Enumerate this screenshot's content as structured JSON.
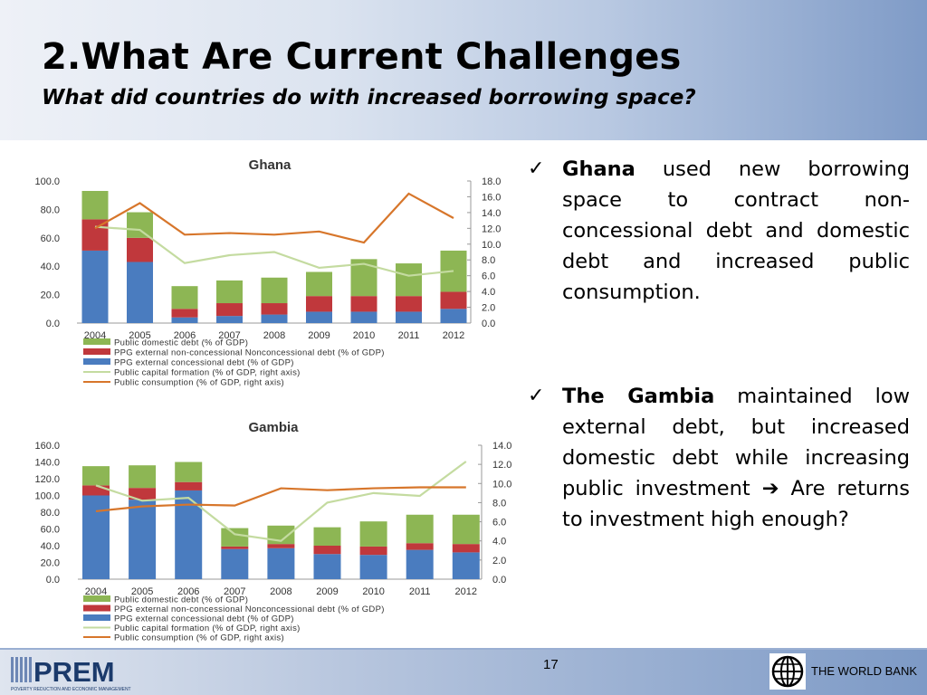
{
  "header": {
    "title": "2.What Are Current Challenges",
    "subtitle": "What did countries do with increased borrowing space?"
  },
  "colors": {
    "domestic": "#8db654",
    "nonconcessional": "#c0383c",
    "concessional": "#4a7cbf",
    "capital_formation": "#c4dba0",
    "consumption": "#d7762b"
  },
  "chart_data": [
    {
      "type": "bar",
      "title": "Ghana",
      "stacked": true,
      "categories": [
        "2004",
        "2005",
        "2006",
        "2007",
        "2008",
        "2009",
        "2010",
        "2011",
        "2012"
      ],
      "left_axis": {
        "ylim": [
          0,
          100
        ],
        "ticks": [
          "0.0",
          "20.0",
          "40.0",
          "60.0",
          "80.0",
          "100.0"
        ]
      },
      "right_axis": {
        "ylim": [
          0,
          18
        ],
        "ticks": [
          "0.0",
          "2.0",
          "4.0",
          "6.0",
          "8.0",
          "10.0",
          "12.0",
          "14.0",
          "16.0",
          "18.0"
        ]
      },
      "series": [
        {
          "name": "PPG external concessional debt (% of GDP)",
          "axis": "left",
          "kind": "bar",
          "values": [
            51,
            43,
            4,
            5,
            6,
            8,
            8,
            8,
            10
          ]
        },
        {
          "name": "PPG external non-concessional Nonconcessional debt (% of GDP)",
          "axis": "left",
          "kind": "bar",
          "values": [
            22,
            17,
            6,
            9,
            8,
            11,
            11,
            11,
            12
          ]
        },
        {
          "name": "Public domestic debt (% of GDP)",
          "axis": "left",
          "kind": "bar",
          "values": [
            20,
            18,
            16,
            16,
            18,
            17,
            26,
            23,
            29
          ]
        },
        {
          "name": "Public capital formation (% of GDP, right axis)",
          "axis": "right",
          "kind": "line",
          "values": [
            12.2,
            11.8,
            7.6,
            8.6,
            9.0,
            7.0,
            7.5,
            6.0,
            6.6
          ]
        },
        {
          "name": "Public consumption (% of GDP, right axis)",
          "axis": "right",
          "kind": "line",
          "values": [
            12.0,
            15.2,
            11.2,
            11.4,
            11.2,
            11.6,
            10.2,
            16.4,
            13.3
          ]
        }
      ],
      "legend": [
        "Public domestic debt (% of GDP)",
        "PPG external non-concessional Nonconcessional debt (% of GDP)",
        "PPG external concessional debt (% of GDP)",
        "Public capital formation (% of GDP, right axis)",
        "Public consumption (% of GDP, right axis)"
      ]
    },
    {
      "type": "bar",
      "title": "Gambia",
      "stacked": true,
      "categories": [
        "2004",
        "2005",
        "2006",
        "2007",
        "2008",
        "2009",
        "2010",
        "2011",
        "2012"
      ],
      "left_axis": {
        "ylim": [
          0,
          160
        ],
        "ticks": [
          "0.0",
          "20.0",
          "40.0",
          "60.0",
          "80.0",
          "100.0",
          "120.0",
          "140.0",
          "160.0"
        ]
      },
      "right_axis": {
        "ylim": [
          0,
          14
        ],
        "ticks": [
          "0.0",
          "2.0",
          "4.0",
          "6.0",
          "8.0",
          "10.0",
          "12.0",
          "14.0"
        ]
      },
      "series": [
        {
          "name": "PPG external concessional debt (% of GDP)",
          "axis": "left",
          "kind": "bar",
          "values": [
            100,
            95,
            106,
            36,
            37,
            30,
            29,
            35,
            32
          ]
        },
        {
          "name": "PPG external non-concessional Nonconcessional debt (% of GDP)",
          "axis": "left",
          "kind": "bar",
          "values": [
            12,
            14,
            10,
            3,
            5,
            10,
            10,
            8,
            10
          ]
        },
        {
          "name": "Public domestic debt (% of GDP)",
          "axis": "left",
          "kind": "bar",
          "values": [
            23,
            27,
            24,
            22,
            22,
            22,
            30,
            34,
            35
          ]
        },
        {
          "name": "Public capital formation (% of GDP, right axis)",
          "axis": "right",
          "kind": "line",
          "values": [
            9.8,
            8.2,
            8.5,
            4.7,
            4.0,
            8.0,
            9.0,
            8.7,
            12.3
          ]
        },
        {
          "name": "Public consumption (% of GDP, right axis)",
          "axis": "right",
          "kind": "line",
          "values": [
            7.1,
            7.6,
            7.8,
            7.7,
            9.5,
            9.3,
            9.5,
            9.6,
            9.6
          ]
        }
      ],
      "legend": [
        "Public domestic debt (% of GDP)",
        "PPG external non-concessional Nonconcessional debt (% of GDP)",
        "PPG external concessional debt (% of GDP)",
        "Public capital formation (% of GDP, right axis)",
        "Public consumption (% of GDP, right axis)"
      ]
    }
  ],
  "bullets": [
    {
      "bold": "Ghana",
      "text": " used new borrowing space to contract non-concessional debt and domestic debt and increased public consumption."
    },
    {
      "bold": "The Gambia",
      "text": " maintained low external debt, but increased domestic debt while increasing public investment ",
      "arrow": "➔",
      "text2": " Are returns to investment high enough?"
    }
  ],
  "footer": {
    "page_number": "17",
    "prem_text": "PREM",
    "prem_sub": "POVERTY REDUCTION AND ECONOMIC MANAGEMENT",
    "world_bank": "THE WORLD BANK"
  }
}
